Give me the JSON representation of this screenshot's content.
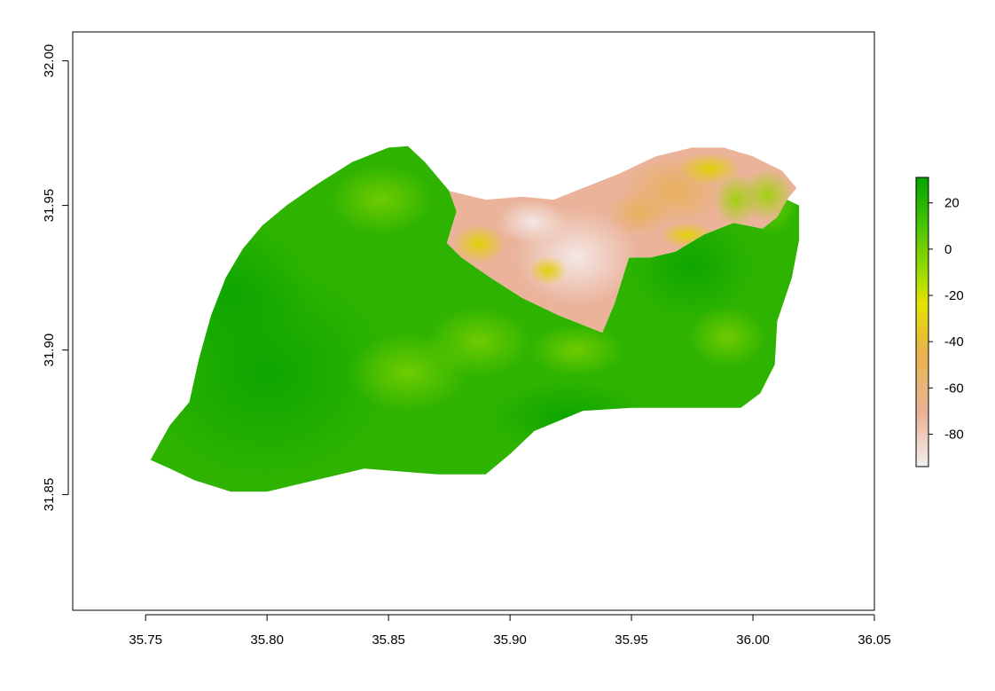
{
  "chart_data": {
    "type": "heatmap",
    "title": "",
    "xlabel": "",
    "ylabel": "",
    "xlim": [
      35.72,
      36.05
    ],
    "ylim": [
      31.81,
      32.01
    ],
    "x_ticks": [
      "35.75",
      "35.80",
      "35.85",
      "35.90",
      "35.95",
      "36.00",
      "36.05"
    ],
    "y_ticks": [
      "31.85",
      "31.90",
      "31.95",
      "32.00"
    ],
    "x_tick_values": [
      35.75,
      35.8,
      35.85,
      35.9,
      35.95,
      36.0,
      36.05
    ],
    "y_tick_values": [
      31.85,
      31.9,
      31.95,
      32.0
    ],
    "legend": {
      "placement": "right",
      "range": [
        -94,
        31
      ],
      "tick_labels": [
        "20",
        "0",
        "-20",
        "-40",
        "-60",
        "-80"
      ],
      "tick_values": [
        20,
        0,
        -20,
        -40,
        -60,
        -80
      ],
      "color_stops": [
        "#f2eeee",
        "#eab39a",
        "#e9b34a",
        "#e3e300",
        "#8fd600",
        "#45c300",
        "#00a600"
      ]
    },
    "regions": [
      {
        "name": "green-region",
        "value_range": [
          -5,
          25
        ],
        "typical_value": 10,
        "color_main": "#2db300",
        "color_dark": "#18aa00",
        "color_light": "#6fcc00",
        "outline": [
          [
            35.752,
            31.862
          ],
          [
            35.76,
            31.874
          ],
          [
            35.768,
            31.882
          ],
          [
            35.772,
            31.897
          ],
          [
            35.777,
            31.912
          ],
          [
            35.783,
            31.925
          ],
          [
            35.79,
            31.935
          ],
          [
            35.798,
            31.943
          ],
          [
            35.808,
            31.95
          ],
          [
            35.82,
            31.957
          ],
          [
            35.835,
            31.965
          ],
          [
            35.85,
            31.97
          ],
          [
            35.858,
            31.9705
          ],
          [
            35.865,
            31.965
          ],
          [
            35.875,
            31.955
          ],
          [
            35.878,
            31.948
          ],
          [
            35.874,
            31.937
          ],
          [
            35.88,
            31.932
          ],
          [
            35.892,
            31.925
          ],
          [
            35.905,
            31.918
          ],
          [
            35.92,
            31.912
          ],
          [
            35.938,
            31.906
          ],
          [
            35.943,
            31.916
          ],
          [
            35.949,
            31.932
          ],
          [
            35.958,
            31.932
          ],
          [
            35.968,
            31.934
          ],
          [
            35.98,
            31.94
          ],
          [
            35.992,
            31.944
          ],
          [
            36.004,
            31.942
          ],
          [
            36.01,
            31.946
          ],
          [
            36.014,
            31.952
          ],
          [
            36.019,
            31.95
          ],
          [
            36.019,
            31.938
          ],
          [
            36.016,
            31.925
          ],
          [
            36.01,
            31.91
          ],
          [
            36.009,
            31.895
          ],
          [
            36.003,
            31.885
          ],
          [
            35.995,
            31.88
          ],
          [
            35.97,
            31.88
          ],
          [
            35.95,
            31.88
          ],
          [
            35.93,
            31.879
          ],
          [
            35.91,
            31.872
          ],
          [
            35.9,
            31.864
          ],
          [
            35.89,
            31.857
          ],
          [
            35.87,
            31.857
          ],
          [
            35.84,
            31.859
          ],
          [
            35.82,
            31.855
          ],
          [
            35.8,
            31.851
          ],
          [
            35.785,
            31.851
          ],
          [
            35.77,
            31.855
          ],
          [
            35.76,
            31.859
          ]
        ]
      },
      {
        "name": "low-value-region",
        "value_range": [
          -94,
          -20
        ],
        "typical_value": -75,
        "color_main": "#eab39a",
        "color_light": "#f0d8d2",
        "color_mid": "#e6b076",
        "color_yellow": "#e3d000",
        "outline": [
          [
            35.874,
            31.937
          ],
          [
            35.878,
            31.948
          ],
          [
            35.875,
            31.955
          ],
          [
            35.89,
            31.952
          ],
          [
            35.905,
            31.953
          ],
          [
            35.918,
            31.952
          ],
          [
            35.93,
            31.956
          ],
          [
            35.945,
            31.961
          ],
          [
            35.96,
            31.967
          ],
          [
            35.975,
            31.97
          ],
          [
            35.988,
            31.97
          ],
          [
            36.0,
            31.967
          ],
          [
            36.012,
            31.962
          ],
          [
            36.018,
            31.956
          ],
          [
            36.014,
            31.952
          ],
          [
            36.01,
            31.946
          ],
          [
            36.004,
            31.942
          ],
          [
            35.992,
            31.944
          ],
          [
            35.98,
            31.94
          ],
          [
            35.968,
            31.934
          ],
          [
            35.958,
            31.932
          ],
          [
            35.949,
            31.932
          ],
          [
            35.943,
            31.916
          ],
          [
            35.938,
            31.906
          ],
          [
            35.92,
            31.912
          ],
          [
            35.905,
            31.918
          ],
          [
            35.892,
            31.925
          ],
          [
            35.88,
            31.932
          ]
        ]
      }
    ]
  }
}
